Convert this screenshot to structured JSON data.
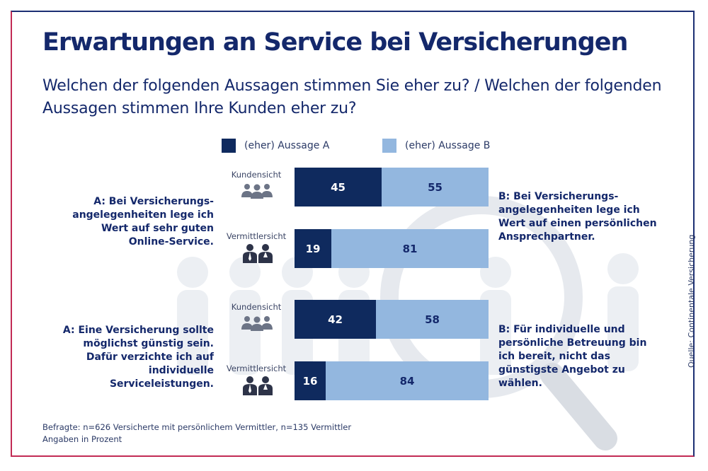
{
  "title": "Erwartungen an Service bei Versicherungen",
  "subtitle": "Welchen der folgenden Aussagen stimmen Sie eher zu? / Welchen der folgenden Aussagen stimmen Ihre Kunden eher zu?",
  "legend": {
    "a": "(eher) Aussage A",
    "b": "(eher) Aussage B"
  },
  "colors": {
    "aussage_a": "#0f2a5e",
    "aussage_b": "#93b7df",
    "title": "#14286b",
    "frame_top": "#1c2f73",
    "frame_bottom": "#c22b55"
  },
  "chart_data": {
    "type": "bar",
    "orientation": "horizontal-stacked-100",
    "unit": "Prozent",
    "groups": [
      {
        "statement_a": "A: Bei Versicherungs-angelegenheiten lege ich Wert auf sehr guten Online-Service.",
        "statement_b": "B: Bei Versicherungs-angelegenheiten lege ich Wert auf einen persönlichen Ansprechpartner.",
        "rows": [
          {
            "label": "Kundensicht",
            "icon": "customers-icon",
            "a": 45,
            "b": 55
          },
          {
            "label": "Vermittlersicht",
            "icon": "agents-icon",
            "a": 19,
            "b": 81
          }
        ]
      },
      {
        "statement_a": "A: Eine Versicherung sollte möglichst günstig sein. Dafür verzichte ich auf individuelle Serviceleistungen.",
        "statement_b": "B: Für individuelle und persönliche Betreuung bin ich bereit, nicht das günstigste Angebot zu wählen.",
        "rows": [
          {
            "label": "Kundensicht",
            "icon": "customers-icon",
            "a": 42,
            "b": 58
          },
          {
            "label": "Vermittlersicht",
            "icon": "agents-icon",
            "a": 16,
            "b": 84
          }
        ]
      }
    ],
    "series": [
      {
        "name": "(eher) Aussage A"
      },
      {
        "name": "(eher) Aussage B"
      }
    ]
  },
  "footnote": {
    "line1": "Befragte: n=626 Versicherte mit persönlichem Vermittler, n=135 Vermittler",
    "line2": "Angaben in Prozent"
  },
  "source": "Quelle: Continentale Versicherung"
}
